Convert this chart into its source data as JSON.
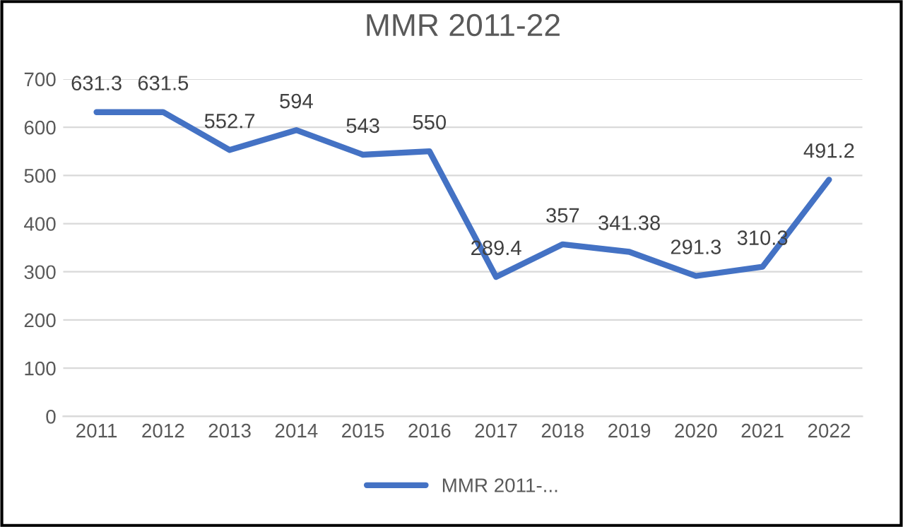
{
  "chart_data": {
    "type": "line",
    "title": "MMR 2011-22",
    "categories": [
      "2011",
      "2012",
      "2013",
      "2014",
      "2015",
      "2016",
      "2017",
      "2018",
      "2019",
      "2020",
      "2021",
      "2022"
    ],
    "series": [
      {
        "name": "MMR 2011-...",
        "color": "#4472c4",
        "values": [
          631.3,
          631.5,
          552.7,
          594,
          543,
          550,
          289.4,
          357,
          341.38,
          291.3,
          310.3,
          491.2
        ]
      }
    ],
    "ylim": [
      0,
      700
    ],
    "yticks": [
      0,
      100,
      200,
      300,
      400,
      500,
      600,
      700
    ],
    "grid": "y",
    "legend": "bottom",
    "data_labels": true,
    "marker": "none",
    "line_style": "solid"
  }
}
